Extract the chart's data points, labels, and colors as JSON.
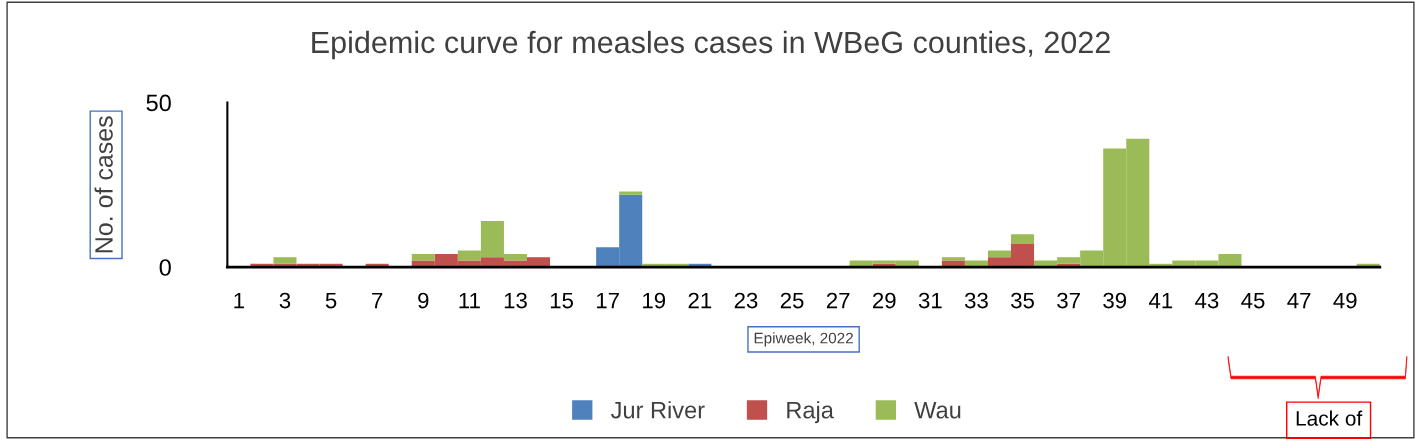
{
  "chart_data": {
    "type": "bar",
    "stacked": true,
    "title": "Epidemic curve for measles cases in WBeG counties, 2022",
    "xlabel": "Epiweek, 2022",
    "ylabel": "No. of cases",
    "categories": [
      "1",
      null,
      "3",
      null,
      "5",
      null,
      "7",
      null,
      "9",
      null,
      "11",
      null,
      "13",
      null,
      "15",
      null,
      "17",
      null,
      "19",
      null,
      "21",
      null,
      "23",
      null,
      "25",
      null,
      "27",
      null,
      "29",
      null,
      "31",
      null,
      "33",
      null,
      "35",
      null,
      "37",
      null,
      "39",
      null,
      "41",
      null,
      "43",
      null,
      "45",
      null,
      "47",
      null,
      "49",
      null
    ],
    "series": [
      {
        "name": "Jur River",
        "color": "#4f81bd",
        "values": [
          0,
          0,
          0,
          0,
          0,
          0,
          0,
          0,
          0,
          0,
          0,
          0,
          0,
          0,
          0,
          0,
          6,
          22,
          0,
          0,
          1,
          0,
          0,
          0,
          0,
          0,
          0,
          0,
          0,
          0,
          0,
          0,
          0,
          0,
          0,
          0,
          0,
          0,
          0,
          0,
          0,
          0,
          0,
          0,
          0,
          0,
          0,
          0,
          0,
          0
        ]
      },
      {
        "name": "Raja",
        "color": "#c0504d",
        "values": [
          0,
          1,
          1,
          1,
          1,
          0,
          1,
          0,
          2,
          4,
          2,
          3,
          2,
          3,
          0,
          0,
          0,
          0,
          0,
          0,
          0,
          0,
          0,
          0,
          0,
          0,
          0,
          0,
          1,
          0,
          0,
          2,
          0,
          3,
          7,
          0,
          1,
          0,
          0,
          0,
          0,
          0,
          0,
          0,
          0,
          0,
          0,
          0,
          0,
          0
        ]
      },
      {
        "name": "Wau",
        "color": "#9bbb59",
        "values": [
          0,
          0,
          2,
          0,
          0,
          0,
          0,
          0,
          2,
          0,
          3,
          11,
          2,
          0,
          0,
          0,
          0,
          1,
          1,
          1,
          0,
          0,
          0,
          0,
          0,
          0,
          0,
          2,
          1,
          2,
          0,
          1,
          2,
          2,
          3,
          2,
          2,
          5,
          36,
          39,
          1,
          2,
          2,
          4,
          0,
          0,
          0,
          0,
          0,
          1
        ]
      }
    ],
    "ylim": [
      0,
      50
    ],
    "yticks": [
      0,
      50
    ],
    "grid": false,
    "legend": "bottom",
    "annotations": [
      "Lack of"
    ]
  }
}
